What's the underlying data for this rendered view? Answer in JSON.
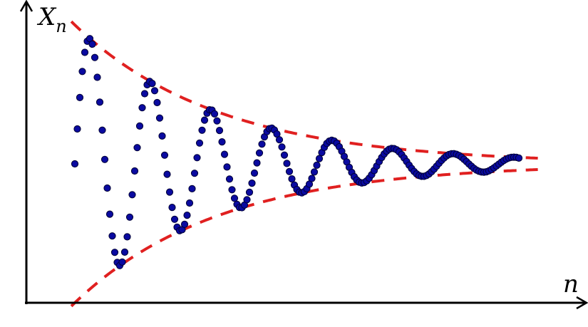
{
  "chart_data": {
    "type": "scatter",
    "title": "",
    "ylabel": "X",
    "ylabel_subscript": "n",
    "xlabel": "n",
    "grid": false,
    "ticks": false,
    "series": [
      {
        "kind": "points",
        "n_range": [
          0,
          178
        ],
        "amplitude": 1,
        "decay_per_step": 0.0172,
        "period_steps": 24.3,
        "color": "#0a0aa0",
        "outline": "#000033"
      }
    ],
    "envelopes": [
      {
        "kind": "upper",
        "n_range": [
          -1.4,
          186
        ],
        "color": "#e02020",
        "style": "dashed"
      },
      {
        "kind": "lower",
        "n_range": [
          -1.4,
          186
        ],
        "color": "#e02020",
        "style": "dashed"
      }
    ]
  }
}
